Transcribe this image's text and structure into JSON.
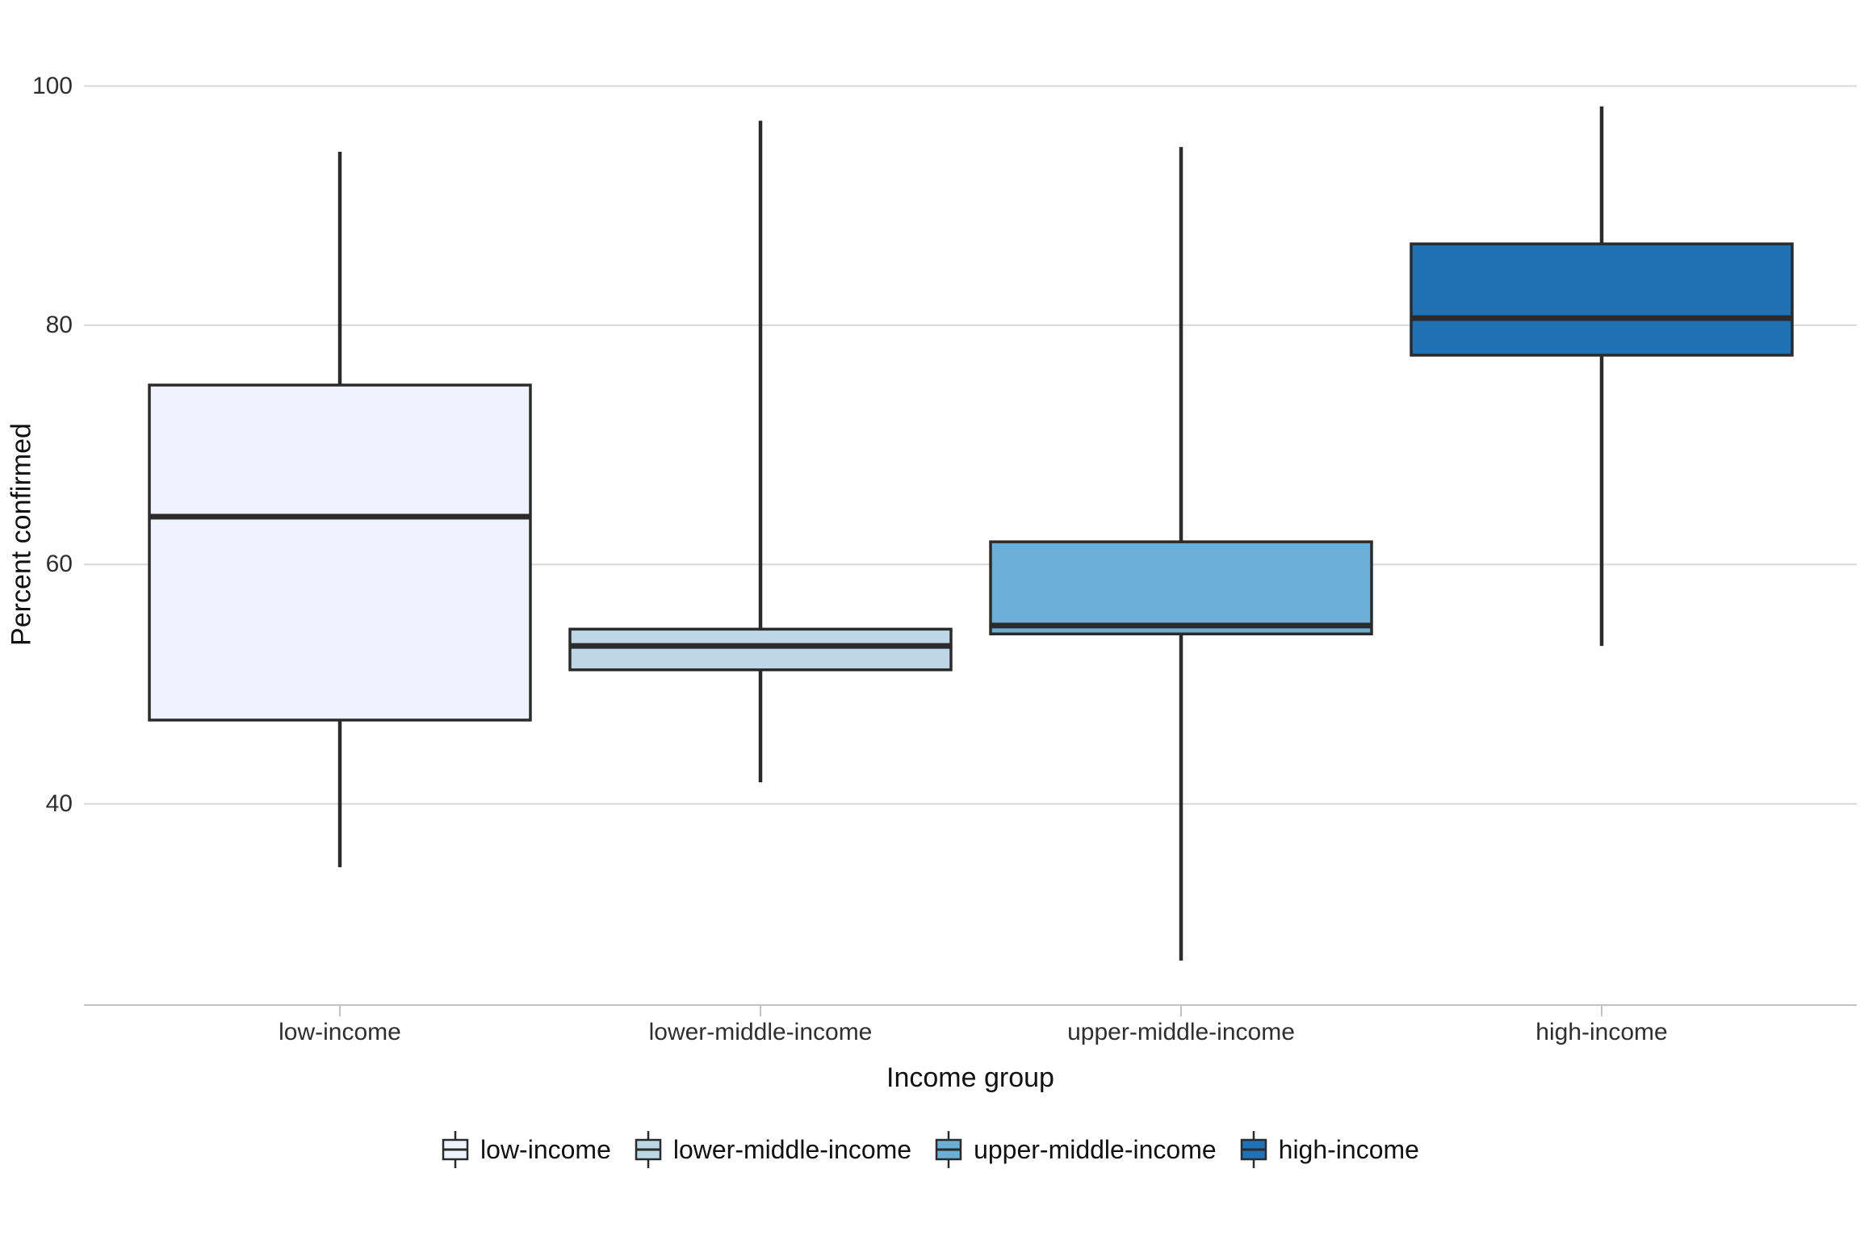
{
  "axes": {
    "y_title": "Percent confirmed",
    "x_title": "Income group"
  },
  "chart_data": {
    "type": "boxplot",
    "title": "",
    "xlabel": "Income group",
    "ylabel": "Percent confirmed",
    "categories": [
      "low-income",
      "lower-middle-income",
      "upper-middle-income",
      "high-income"
    ],
    "yticks": [
      100,
      80,
      60,
      40
    ],
    "ylim": [
      23,
      107
    ],
    "grid": "horizontal-only",
    "legend_position": "bottom",
    "series": [
      {
        "name": "low-income",
        "color": "#EFF3FF",
        "whisker_low": 34.7,
        "q1": 47.0,
        "median": 64.0,
        "q3": 75.0,
        "whisker_high": 94.5
      },
      {
        "name": "lower-middle-income",
        "color": "#BDD7E7",
        "whisker_low": 41.8,
        "q1": 51.2,
        "median": 53.2,
        "q3": 54.6,
        "whisker_high": 97.1
      },
      {
        "name": "upper-middle-income",
        "color": "#6BAED6",
        "whisker_low": 26.9,
        "q1": 54.2,
        "median": 54.9,
        "q3": 61.9,
        "whisker_high": 94.9
      },
      {
        "name": "high-income",
        "color": "#2171B5",
        "whisker_low": 53.2,
        "q1": 77.5,
        "median": 80.6,
        "q3": 86.8,
        "whisker_high": 98.3
      }
    ],
    "style": {
      "box_border_color": "#2b2b2b",
      "median_color": "#2b2b2b",
      "whisker_color": "#2b2b2b",
      "gridline_color": "#d9d9d9",
      "axis_line_color": "#c3c3c3",
      "background_color": "#ffffff"
    }
  }
}
